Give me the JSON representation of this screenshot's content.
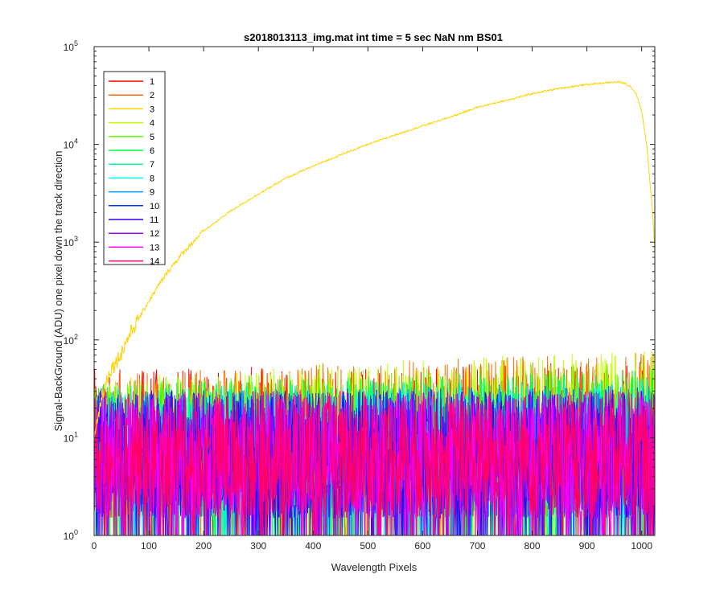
{
  "chart_data": {
    "type": "line",
    "title": "s2018013113_img.mat int time = 5 sec  NaN nm BS01",
    "xlabel": "Wavelength Pixels",
    "ylabel": "Signal-BackGround (ADU) one pixel down the track direction",
    "y_scale": "log",
    "xlim": [
      0,
      1024
    ],
    "ylim": [
      1,
      100000
    ],
    "x_ticks": [
      0,
      100,
      200,
      300,
      400,
      500,
      600,
      700,
      800,
      900,
      1000
    ],
    "y_ticks": [
      {
        "base": "10",
        "exp": "0",
        "value": 1
      },
      {
        "base": "10",
        "exp": "1",
        "value": 10
      },
      {
        "base": "10",
        "exp": "2",
        "value": 100
      },
      {
        "base": "10",
        "exp": "3",
        "value": 1000
      },
      {
        "base": "10",
        "exp": "4",
        "value": 10000
      },
      {
        "base": "10",
        "exp": "5",
        "value": 100000
      }
    ],
    "grid": false,
    "legend_position": "top-left",
    "series": [
      {
        "name": "1",
        "color": "#ff0000",
        "envelope": {
          "x": [
            0,
            1024
          ],
          "low": [
            1,
            1
          ],
          "high": [
            50,
            60
          ]
        }
      },
      {
        "name": "2",
        "color": "#ff6a00",
        "envelope": {
          "x": [
            0,
            1024
          ],
          "low": [
            1,
            1
          ],
          "high": [
            45,
            75
          ]
        }
      },
      {
        "name": "3",
        "color": "#ffd400",
        "x": [
          0,
          10,
          20,
          30,
          40,
          50,
          60,
          70,
          80,
          90,
          100,
          120,
          140,
          160,
          180,
          200,
          250,
          300,
          350,
          400,
          450,
          500,
          550,
          600,
          650,
          700,
          750,
          800,
          850,
          900,
          940,
          960,
          970,
          980,
          990,
          1000,
          1010,
          1020,
          1024
        ],
        "values": [
          10,
          20,
          35,
          50,
          60,
          75,
          100,
          130,
          160,
          200,
          250,
          380,
          550,
          750,
          1000,
          1300,
          2100,
          3100,
          4500,
          6000,
          7800,
          10000,
          12500,
          15500,
          19000,
          24000,
          28000,
          33000,
          37500,
          41000,
          43000,
          43500,
          42000,
          39000,
          33000,
          22000,
          9000,
          2000,
          800
        ]
      },
      {
        "name": "4",
        "color": "#c4ff00",
        "envelope": {
          "x": [
            0,
            1024
          ],
          "low": [
            1,
            1
          ],
          "high": [
            40,
            80
          ]
        }
      },
      {
        "name": "5",
        "color": "#66ff00",
        "envelope": {
          "x": [
            0,
            1024
          ],
          "low": [
            1,
            1
          ],
          "high": [
            40,
            60
          ]
        }
      },
      {
        "name": "6",
        "color": "#00ff3c",
        "envelope": {
          "x": [
            0,
            1024
          ],
          "low": [
            1,
            1
          ],
          "high": [
            35,
            50
          ]
        }
      },
      {
        "name": "7",
        "color": "#00ff99",
        "envelope": {
          "x": [
            0,
            1024
          ],
          "low": [
            1,
            1
          ],
          "high": [
            35,
            45
          ]
        }
      },
      {
        "name": "8",
        "color": "#00ffee",
        "envelope": {
          "x": [
            0,
            1024
          ],
          "low": [
            1,
            1
          ],
          "high": [
            30,
            40
          ]
        }
      },
      {
        "name": "9",
        "color": "#0099ff",
        "envelope": {
          "x": [
            0,
            1024
          ],
          "low": [
            1,
            1
          ],
          "high": [
            30,
            35
          ]
        }
      },
      {
        "name": "10",
        "color": "#0033ff",
        "envelope": {
          "x": [
            0,
            1024
          ],
          "low": [
            1,
            1
          ],
          "high": [
            30,
            35
          ]
        }
      },
      {
        "name": "11",
        "color": "#3300ff",
        "envelope": {
          "x": [
            0,
            1024
          ],
          "low": [
            1,
            1
          ],
          "high": [
            30,
            30
          ]
        }
      },
      {
        "name": "12",
        "color": "#9900ff",
        "envelope": {
          "x": [
            0,
            1024
          ],
          "low": [
            1,
            1
          ],
          "high": [
            30,
            30
          ]
        }
      },
      {
        "name": "13",
        "color": "#ff00ee",
        "envelope": {
          "x": [
            0,
            1024
          ],
          "low": [
            1,
            1
          ],
          "high": [
            30,
            30
          ]
        }
      },
      {
        "name": "14",
        "color": "#ff0066",
        "envelope": {
          "x": [
            0,
            1024
          ],
          "low": [
            1,
            1
          ],
          "high": [
            30,
            30
          ]
        }
      }
    ]
  }
}
